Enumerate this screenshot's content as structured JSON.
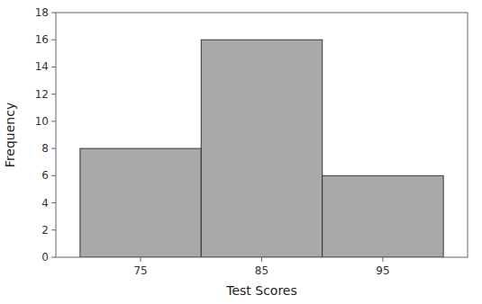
{
  "chart_data": {
    "type": "histogram",
    "xlabel": "Test Scores",
    "ylabel": "Frequency",
    "bins": [
      70,
      80,
      90,
      100
    ],
    "values": [
      8,
      16,
      6
    ],
    "color": "#a9a9a9",
    "xlim": [
      68,
      102
    ],
    "ylim": [
      0,
      18
    ],
    "xticks": [
      75,
      85,
      95
    ],
    "yticks": [
      0,
      2,
      4,
      6,
      8,
      10,
      12,
      14,
      16,
      18
    ],
    "grid": false
  }
}
